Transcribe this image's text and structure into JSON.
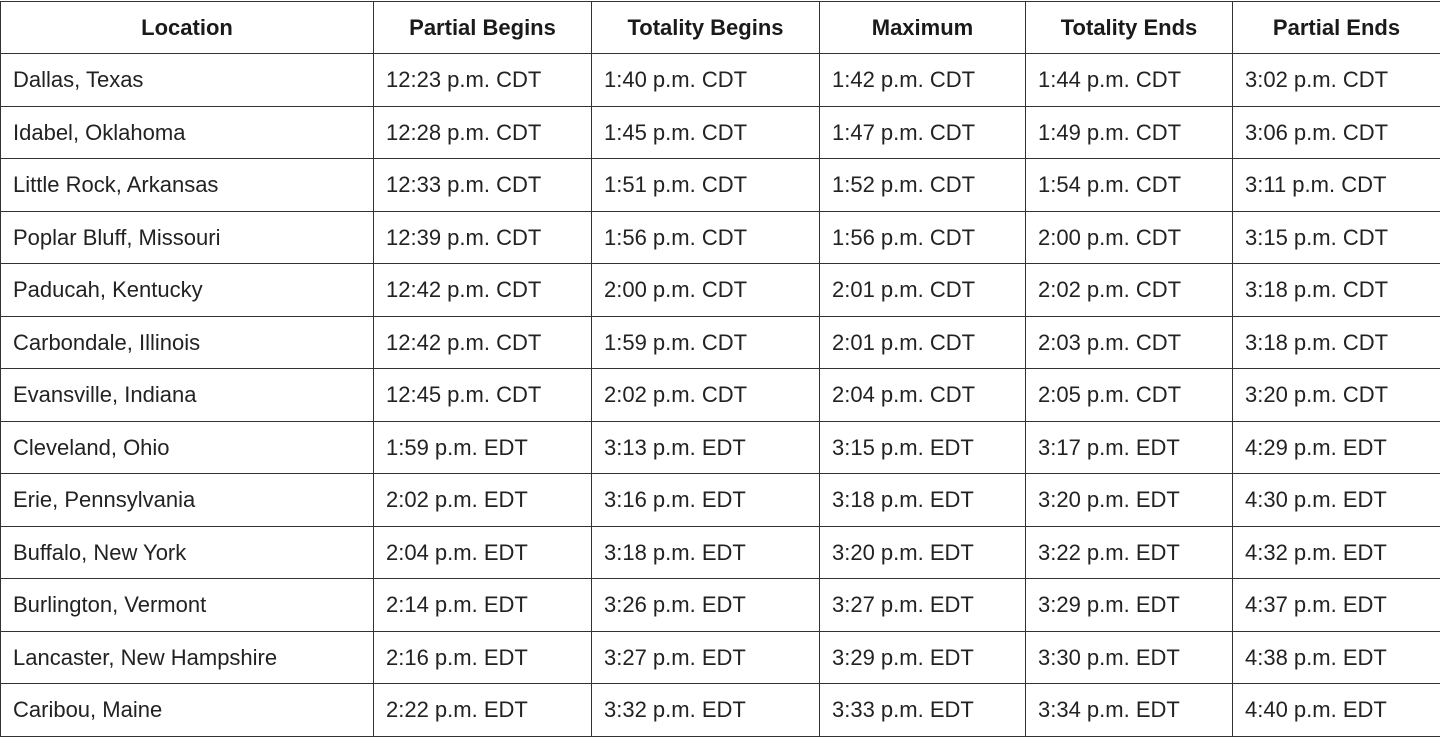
{
  "table": {
    "headers": [
      "Location",
      "Partial Begins",
      "Totality Begins",
      "Maximum",
      "Totality Ends",
      "Partial Ends"
    ],
    "rows": [
      [
        "Dallas, Texas",
        "12:23 p.m. CDT",
        "1:40 p.m. CDT",
        "1:42 p.m. CDT",
        "1:44 p.m. CDT",
        "3:02 p.m. CDT"
      ],
      [
        "Idabel, Oklahoma",
        "12:28 p.m. CDT",
        "1:45 p.m. CDT",
        "1:47 p.m. CDT",
        "1:49 p.m. CDT",
        "3:06 p.m. CDT"
      ],
      [
        "Little Rock, Arkansas",
        "12:33 p.m. CDT",
        "1:51 p.m. CDT",
        "1:52 p.m. CDT",
        "1:54 p.m. CDT",
        "3:11 p.m. CDT"
      ],
      [
        "Poplar Bluff, Missouri",
        "12:39 p.m. CDT",
        "1:56 p.m. CDT",
        "1:56 p.m. CDT",
        "2:00 p.m. CDT",
        "3:15 p.m. CDT"
      ],
      [
        "Paducah, Kentucky",
        "12:42 p.m. CDT",
        "2:00 p.m. CDT",
        "2:01 p.m. CDT",
        "2:02 p.m. CDT",
        "3:18 p.m. CDT"
      ],
      [
        "Carbondale, Illinois",
        "12:42 p.m. CDT",
        "1:59 p.m. CDT",
        "2:01 p.m. CDT",
        "2:03 p.m. CDT",
        "3:18 p.m. CDT"
      ],
      [
        "Evansville, Indiana",
        "12:45 p.m. CDT",
        "2:02 p.m. CDT",
        "2:04 p.m. CDT",
        "2:05 p.m. CDT",
        "3:20 p.m. CDT"
      ],
      [
        "Cleveland, Ohio",
        "1:59 p.m. EDT",
        "3:13 p.m. EDT",
        "3:15 p.m. EDT",
        "3:17 p.m. EDT",
        "4:29 p.m. EDT"
      ],
      [
        "Erie, Pennsylvania",
        "2:02 p.m. EDT",
        "3:16 p.m. EDT",
        "3:18 p.m. EDT",
        "3:20 p.m. EDT",
        "4:30 p.m. EDT"
      ],
      [
        "Buffalo, New York",
        "2:04 p.m. EDT",
        "3:18 p.m. EDT",
        "3:20 p.m. EDT",
        "3:22 p.m. EDT",
        "4:32 p.m. EDT"
      ],
      [
        "Burlington, Vermont",
        "2:14 p.m. EDT",
        "3:26 p.m. EDT",
        "3:27 p.m. EDT",
        "3:29 p.m. EDT",
        "4:37 p.m. EDT"
      ],
      [
        "Lancaster, New Hampshire",
        "2:16 p.m. EDT",
        "3:27 p.m. EDT",
        "3:29 p.m. EDT",
        "3:30 p.m. EDT",
        "4:38 p.m. EDT"
      ],
      [
        "Caribou, Maine",
        "2:22 p.m. EDT",
        "3:32 p.m. EDT",
        "3:33 p.m. EDT",
        "3:34 p.m. EDT",
        "4:40 p.m. EDT"
      ]
    ]
  },
  "colors": {
    "border": "#333333",
    "text": "#1a1a1a",
    "background": "#ffffff"
  }
}
